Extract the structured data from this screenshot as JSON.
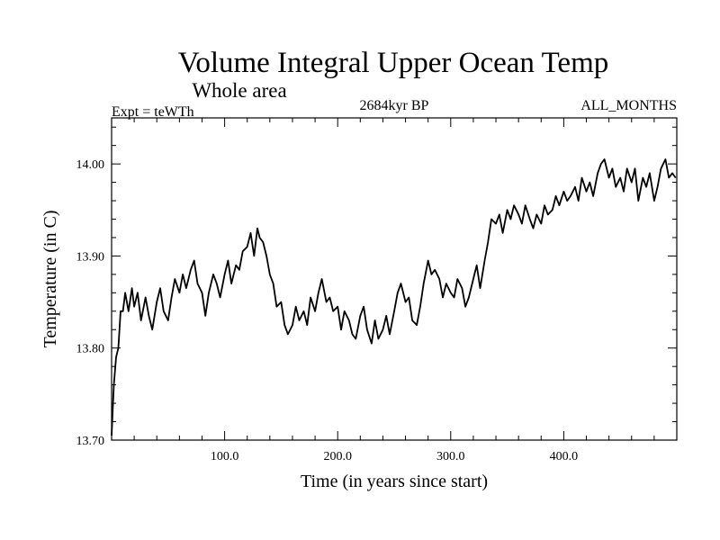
{
  "chart_data": {
    "type": "line",
    "title": "Volume Integral Upper Ocean Temp",
    "subtitle": "Whole area",
    "annotations": {
      "experiment": "Expt = teWTh",
      "period": "2684kyr BP",
      "months": "ALL_MONTHS"
    },
    "xlabel": "Time (in years since start)",
    "ylabel": "Temperature (in C)",
    "xlim": [
      0,
      500
    ],
    "ylim": [
      13.7,
      14.05
    ],
    "x_ticks": [
      {
        "value": 100,
        "label": "100.0"
      },
      {
        "value": 200,
        "label": "200.0"
      },
      {
        "value": 300,
        "label": "300.0"
      },
      {
        "value": 400,
        "label": "400.0"
      }
    ],
    "y_ticks": [
      {
        "value": 13.7,
        "label": "13.70"
      },
      {
        "value": 13.8,
        "label": "13.80"
      },
      {
        "value": 13.9,
        "label": "13.90"
      },
      {
        "value": 14.0,
        "label": "14.00"
      }
    ],
    "series": [
      {
        "name": "Volume integral upper ocean temperature",
        "x": [
          0,
          2,
          4,
          6,
          8,
          10,
          12,
          15,
          18,
          20,
          23,
          26,
          30,
          33,
          36,
          40,
          43,
          46,
          50,
          53,
          56,
          60,
          63,
          66,
          70,
          73,
          76,
          80,
          83,
          86,
          90,
          93,
          96,
          100,
          103,
          106,
          110,
          113,
          116,
          120,
          123,
          126,
          129,
          131,
          134,
          137,
          140,
          143,
          146,
          150,
          153,
          156,
          160,
          163,
          166,
          170,
          173,
          176,
          180,
          183,
          186,
          190,
          193,
          196,
          200,
          203,
          206,
          210,
          213,
          216,
          220,
          223,
          226,
          230,
          233,
          236,
          240,
          243,
          246,
          250,
          253,
          256,
          260,
          263,
          266,
          270,
          273,
          276,
          280,
          283,
          286,
          290,
          293,
          296,
          300,
          303,
          306,
          310,
          313,
          316,
          320,
          323,
          326,
          330,
          333,
          336,
          340,
          343,
          346,
          350,
          353,
          356,
          360,
          363,
          366,
          370,
          373,
          376,
          380,
          383,
          386,
          390,
          393,
          396,
          400,
          403,
          406,
          410,
          413,
          416,
          420,
          423,
          426,
          430,
          433,
          436,
          440,
          443,
          446,
          450,
          453,
          456,
          460,
          463,
          466,
          470,
          473,
          476,
          480,
          483,
          486,
          490,
          493,
          496,
          499
        ],
        "values": [
          13.705,
          13.76,
          13.79,
          13.8,
          13.84,
          13.84,
          13.86,
          13.84,
          13.865,
          13.845,
          13.86,
          13.83,
          13.855,
          13.835,
          13.82,
          13.85,
          13.865,
          13.84,
          13.83,
          13.855,
          13.875,
          13.86,
          13.88,
          13.865,
          13.885,
          13.895,
          13.87,
          13.86,
          13.835,
          13.86,
          13.88,
          13.87,
          13.855,
          13.88,
          13.895,
          13.87,
          13.89,
          13.885,
          13.905,
          13.91,
          13.925,
          13.9,
          13.93,
          13.92,
          13.915,
          13.9,
          13.88,
          13.87,
          13.845,
          13.85,
          13.825,
          13.815,
          13.825,
          13.845,
          13.83,
          13.84,
          13.825,
          13.855,
          13.84,
          13.86,
          13.875,
          13.85,
          13.855,
          13.84,
          13.845,
          13.82,
          13.84,
          13.83,
          13.815,
          13.81,
          13.835,
          13.845,
          13.82,
          13.805,
          13.83,
          13.81,
          13.82,
          13.835,
          13.815,
          13.84,
          13.86,
          13.87,
          13.85,
          13.855,
          13.83,
          13.825,
          13.845,
          13.87,
          13.895,
          13.88,
          13.885,
          13.875,
          13.855,
          13.87,
          13.86,
          13.855,
          13.875,
          13.865,
          13.845,
          13.855,
          13.875,
          13.89,
          13.865,
          13.895,
          13.915,
          13.94,
          13.935,
          13.945,
          13.925,
          13.95,
          13.94,
          13.955,
          13.945,
          13.935,
          13.955,
          13.94,
          13.93,
          13.945,
          13.935,
          13.955,
          13.945,
          13.95,
          13.965,
          13.955,
          13.97,
          13.96,
          13.965,
          13.975,
          13.96,
          13.985,
          13.97,
          13.98,
          13.965,
          13.99,
          14.0,
          14.005,
          13.985,
          13.995,
          13.975,
          13.985,
          13.97,
          13.995,
          13.98,
          13.995,
          13.96,
          13.985,
          13.975,
          13.99,
          13.96,
          13.975,
          13.995,
          14.005,
          13.985,
          13.99,
          13.985
        ]
      }
    ],
    "grid": false,
    "legend": "none"
  }
}
